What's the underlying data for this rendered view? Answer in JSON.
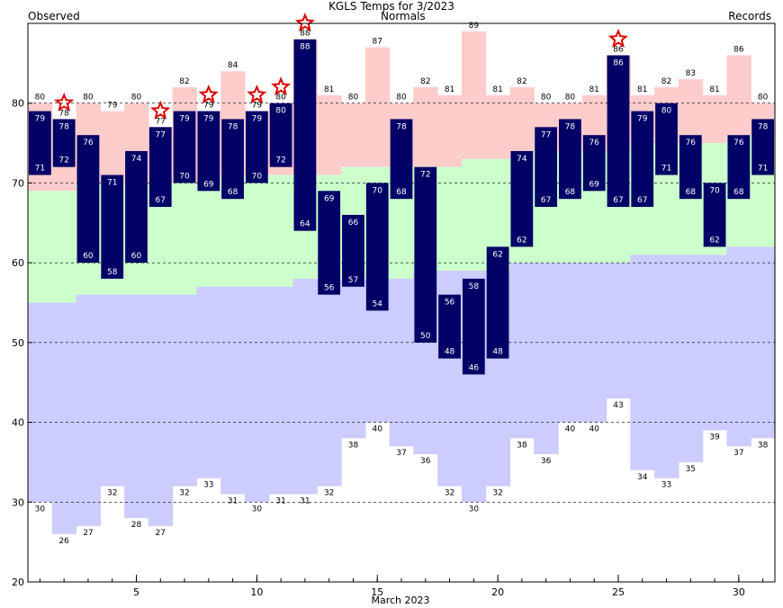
{
  "colors": {
    "observed_bar": "#000066",
    "observed_label": "#ffffff",
    "normal_fill": "#ccffcc",
    "record_high_fill": "#ffcccc",
    "record_low_fill": "#ccccff",
    "star": "#dd0000",
    "legend_observed": "#000080",
    "legend_normals": "#006400",
    "legend_records": "#cc88cc",
    "gridline": "#000000"
  },
  "chart_data": {
    "type": "bar",
    "title": "KGLS Temps for 3/2023",
    "xlabel": "March 2023",
    "ylabel": "",
    "ylim": [
      20,
      90
    ],
    "xlim": [
      0.5,
      31.5
    ],
    "yticks": [
      20,
      30,
      40,
      50,
      60,
      70,
      80
    ],
    "xticks": [
      5,
      10,
      15,
      20,
      25,
      30
    ],
    "grid": "dashed horizontal lines at 30, 40, 50, 60, 70, 80",
    "legend": {
      "observed": "Observed",
      "normals": "Normals",
      "records": "Records"
    },
    "days": [
      1,
      2,
      3,
      4,
      5,
      6,
      7,
      8,
      9,
      10,
      11,
      12,
      13,
      14,
      15,
      16,
      17,
      18,
      19,
      20,
      21,
      22,
      23,
      24,
      25,
      26,
      27,
      28,
      29,
      30,
      31
    ],
    "series": [
      {
        "name": "Observed High",
        "values": [
          79,
          78,
          76,
          71,
          74,
          77,
          79,
          79,
          78,
          79,
          80,
          88,
          69,
          66,
          70,
          78,
          72,
          56,
          58,
          62,
          74,
          77,
          78,
          76,
          86,
          79,
          80,
          76,
          70,
          76,
          78
        ]
      },
      {
        "name": "Observed Low",
        "values": [
          71,
          72,
          60,
          58,
          60,
          67,
          70,
          69,
          68,
          70,
          72,
          64,
          56,
          57,
          54,
          68,
          50,
          48,
          46,
          48,
          62,
          67,
          68,
          69,
          67,
          67,
          71,
          68,
          62,
          68,
          71
        ]
      },
      {
        "name": "Record High",
        "values": [
          80,
          78,
          80,
          79,
          80,
          77,
          82,
          79,
          84,
          79,
          80,
          88,
          81,
          80,
          87,
          80,
          82,
          81,
          89,
          81,
          82,
          80,
          80,
          81,
          86,
          81,
          82,
          83,
          81,
          86,
          80
        ]
      },
      {
        "name": "Record Low",
        "values": [
          30,
          26,
          27,
          32,
          28,
          27,
          32,
          33,
          31,
          30,
          31,
          31,
          32,
          38,
          40,
          37,
          36,
          32,
          30,
          32,
          38,
          36,
          40,
          40,
          43,
          34,
          33,
          35,
          39,
          37,
          38
        ]
      },
      {
        "name": "Normal High",
        "values": [
          69,
          69,
          70,
          70,
          70,
          70,
          70,
          70,
          71,
          71,
          71,
          71,
          71,
          72,
          72,
          72,
          72,
          72,
          73,
          73,
          73,
          74,
          74,
          74,
          74,
          75,
          75,
          75,
          75,
          76,
          76
        ]
      },
      {
        "name": "Normal Low",
        "values": [
          55,
          55,
          56,
          56,
          56,
          56,
          56,
          57,
          57,
          57,
          57,
          58,
          58,
          58,
          58,
          58,
          59,
          59,
          59,
          59,
          60,
          60,
          60,
          60,
          60,
          61,
          61,
          61,
          61,
          62,
          62
        ]
      }
    ],
    "record_stars": [
      2,
      6,
      8,
      10,
      11,
      12,
      25
    ]
  }
}
